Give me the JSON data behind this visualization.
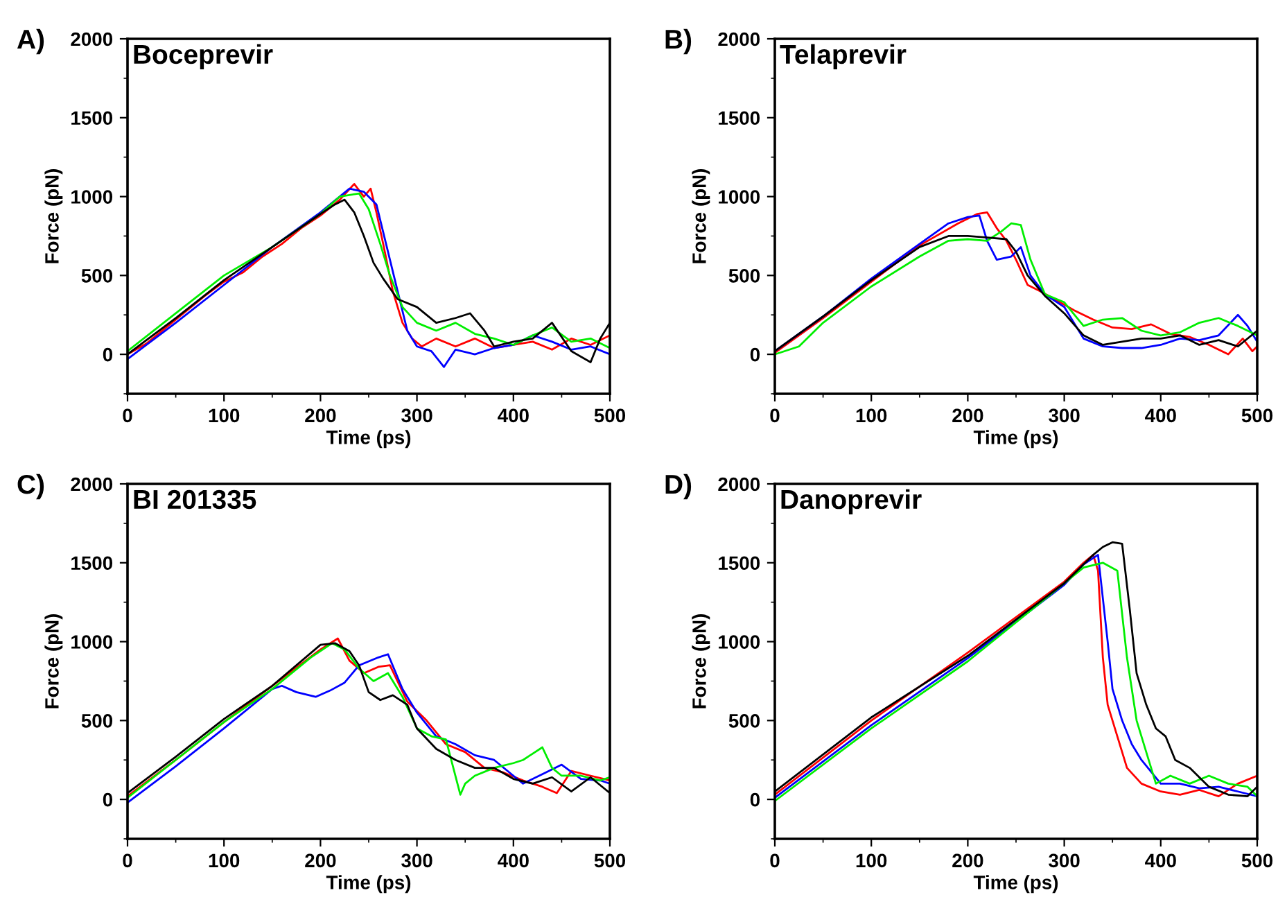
{
  "chart_data": [
    {
      "type": "line",
      "title": "Boceprevir",
      "annotations": [
        "A)"
      ],
      "xlabel": "Time (ps)",
      "ylabel": "Force (pN)",
      "xlim": [
        0,
        500
      ],
      "ylim": [
        -250,
        2000
      ],
      "xticks": [
        0,
        {
          "value": 50,
          "label": null
        },
        100,
        {
          "value": 150,
          "label": null
        },
        200,
        {
          "value": 250,
          "label": null
        },
        300,
        {
          "value": 350,
          "label": null
        },
        400,
        {
          "value": 450,
          "label": null
        },
        500
      ],
      "yticks": [
        {
          "value": -250,
          "label": null
        },
        0,
        {
          "value": 250,
          "label": null
        },
        500,
        {
          "value": 750,
          "label": null
        },
        1000,
        {
          "value": 1250,
          "label": null
        },
        1500,
        {
          "value": 1750,
          "label": null
        },
        2000
      ],
      "grid": false,
      "legend": false,
      "line_style": "solid",
      "marker": "none",
      "series": [
        {
          "color": "#ff0000",
          "x": [
            0,
            20,
            40,
            60,
            80,
            100,
            120,
            140,
            160,
            180,
            200,
            220,
            235,
            245,
            252,
            258,
            265,
            275,
            285,
            295,
            305,
            320,
            340,
            360,
            380,
            400,
            420,
            440,
            460,
            480,
            500
          ],
          "values": [
            0,
            70,
            170,
            270,
            370,
            460,
            520,
            620,
            700,
            800,
            880,
            980,
            1080,
            1000,
            1050,
            900,
            700,
            400,
            200,
            100,
            50,
            100,
            50,
            100,
            40,
            60,
            80,
            30,
            100,
            60,
            120
          ]
        },
        {
          "color": "#0000ff",
          "x": [
            0,
            50,
            100,
            150,
            200,
            230,
            245,
            258,
            268,
            280,
            290,
            300,
            315,
            328,
            340,
            360,
            380,
            400,
            420,
            440,
            460,
            480,
            500
          ],
          "values": [
            -30,
            200,
            440,
            680,
            900,
            1050,
            1030,
            950,
            700,
            400,
            150,
            50,
            20,
            -80,
            30,
            0,
            40,
            60,
            120,
            80,
            30,
            50,
            0
          ]
        },
        {
          "color": "#00ee00",
          "x": [
            0,
            50,
            100,
            150,
            200,
            220,
            240,
            250,
            262,
            272,
            285,
            300,
            320,
            340,
            360,
            380,
            400,
            420,
            440,
            460,
            480,
            500
          ],
          "values": [
            20,
            260,
            500,
            680,
            890,
            1000,
            1020,
            920,
            700,
            500,
            300,
            200,
            150,
            200,
            130,
            100,
            60,
            120,
            170,
            80,
            100,
            40
          ]
        },
        {
          "color": "#000000",
          "x": [
            0,
            50,
            100,
            150,
            200,
            215,
            225,
            235,
            245,
            255,
            265,
            280,
            300,
            320,
            340,
            355,
            370,
            380,
            400,
            420,
            440,
            460,
            480,
            490,
            500
          ],
          "values": [
            0,
            230,
            470,
            680,
            890,
            950,
            980,
            900,
            750,
            580,
            480,
            350,
            300,
            200,
            230,
            260,
            150,
            50,
            80,
            100,
            200,
            20,
            -50,
            100,
            200
          ]
        }
      ]
    },
    {
      "type": "line",
      "title": "Telaprevir",
      "annotations": [
        "B)"
      ],
      "xlabel": "Time (ps)",
      "ylabel": "Force (pN)",
      "xlim": [
        0,
        500
      ],
      "ylim": [
        -250,
        2000
      ],
      "xticks": [
        0,
        {
          "value": 50,
          "label": null
        },
        100,
        {
          "value": 150,
          "label": null
        },
        200,
        {
          "value": 250,
          "label": null
        },
        300,
        {
          "value": 350,
          "label": null
        },
        400,
        {
          "value": 450,
          "label": null
        },
        500
      ],
      "yticks": [
        {
          "value": -250,
          "label": null
        },
        0,
        {
          "value": 250,
          "label": null
        },
        500,
        {
          "value": 750,
          "label": null
        },
        1000,
        {
          "value": 1250,
          "label": null
        },
        1500,
        {
          "value": 1750,
          "label": null
        },
        2000
      ],
      "grid": false,
      "legend": false,
      "line_style": "solid",
      "marker": "none",
      "series": [
        {
          "color": "#ff0000",
          "x": [
            0,
            50,
            100,
            150,
            190,
            210,
            220,
            230,
            240,
            250,
            262,
            275,
            290,
            310,
            330,
            350,
            370,
            390,
            410,
            430,
            450,
            470,
            485,
            495,
            500
          ],
          "values": [
            10,
            230,
            460,
            690,
            830,
            890,
            900,
            800,
            720,
            600,
            440,
            400,
            350,
            280,
            220,
            170,
            160,
            190,
            130,
            110,
            60,
            0,
            100,
            20,
            50
          ]
        },
        {
          "color": "#0000ff",
          "x": [
            0,
            50,
            100,
            150,
            180,
            200,
            212,
            220,
            230,
            245,
            255,
            265,
            280,
            300,
            320,
            340,
            360,
            380,
            400,
            420,
            440,
            460,
            480,
            490,
            500
          ],
          "values": [
            20,
            240,
            480,
            700,
            830,
            870,
            880,
            720,
            600,
            620,
            680,
            500,
            380,
            300,
            100,
            50,
            40,
            40,
            60,
            100,
            90,
            120,
            250,
            180,
            80
          ]
        },
        {
          "color": "#00ee00",
          "x": [
            0,
            25,
            50,
            100,
            150,
            180,
            200,
            220,
            235,
            245,
            255,
            265,
            280,
            300,
            320,
            340,
            360,
            380,
            400,
            420,
            440,
            460,
            480,
            500
          ],
          "values": [
            0,
            50,
            200,
            430,
            620,
            720,
            730,
            720,
            780,
            830,
            820,
            600,
            380,
            330,
            180,
            220,
            230,
            150,
            120,
            140,
            200,
            230,
            180,
            120
          ]
        },
        {
          "color": "#000000",
          "x": [
            0,
            50,
            100,
            150,
            180,
            200,
            220,
            240,
            250,
            262,
            280,
            300,
            320,
            340,
            360,
            380,
            400,
            420,
            440,
            460,
            480,
            500
          ],
          "values": [
            20,
            240,
            470,
            680,
            750,
            750,
            740,
            730,
            650,
            500,
            370,
            260,
            120,
            60,
            80,
            100,
            100,
            120,
            60,
            90,
            50,
            150
          ]
        }
      ]
    },
    {
      "type": "line",
      "title": "BI 201335",
      "annotations": [
        "C)"
      ],
      "xlabel": "Time (ps)",
      "ylabel": "Force (pN)",
      "xlim": [
        0,
        500
      ],
      "ylim": [
        -250,
        2000
      ],
      "xticks": [
        0,
        {
          "value": 50,
          "label": null
        },
        100,
        {
          "value": 150,
          "label": null
        },
        200,
        {
          "value": 250,
          "label": null
        },
        300,
        {
          "value": 350,
          "label": null
        },
        400,
        {
          "value": 450,
          "label": null
        },
        500
      ],
      "yticks": [
        {
          "value": -250,
          "label": null
        },
        0,
        {
          "value": 250,
          "label": null
        },
        500,
        {
          "value": 750,
          "label": null
        },
        1000,
        {
          "value": 1250,
          "label": null
        },
        1500,
        {
          "value": 1750,
          "label": null
        },
        2000
      ],
      "grid": false,
      "legend": false,
      "line_style": "solid",
      "marker": "none",
      "series": [
        {
          "color": "#ff0000",
          "x": [
            0,
            50,
            100,
            150,
            200,
            218,
            230,
            245,
            260,
            272,
            290,
            310,
            330,
            350,
            370,
            390,
            410,
            430,
            445,
            460,
            480,
            500
          ],
          "values": [
            20,
            250,
            490,
            720,
            950,
            1020,
            880,
            800,
            840,
            850,
            620,
            500,
            350,
            300,
            200,
            170,
            120,
            80,
            40,
            180,
            150,
            120
          ]
        },
        {
          "color": "#0000ff",
          "x": [
            0,
            50,
            100,
            150,
            160,
            175,
            195,
            210,
            225,
            240,
            260,
            270,
            285,
            300,
            320,
            340,
            360,
            380,
            400,
            410,
            430,
            450,
            470,
            490,
            500
          ],
          "values": [
            -20,
            210,
            450,
            700,
            720,
            680,
            650,
            690,
            740,
            850,
            900,
            920,
            700,
            550,
            400,
            350,
            280,
            250,
            150,
            100,
            160,
            220,
            130,
            120,
            100
          ]
        },
        {
          "color": "#00ee00",
          "x": [
            0,
            50,
            100,
            150,
            190,
            212,
            225,
            240,
            255,
            270,
            285,
            300,
            315,
            330,
            345,
            350,
            360,
            380,
            400,
            410,
            420,
            430,
            440,
            450,
            470,
            490,
            500
          ],
          "values": [
            10,
            250,
            490,
            700,
            900,
            990,
            950,
            830,
            750,
            800,
            650,
            450,
            400,
            380,
            30,
            100,
            150,
            200,
            230,
            250,
            290,
            330,
            200,
            150,
            150,
            120,
            140
          ]
        },
        {
          "color": "#000000",
          "x": [
            0,
            50,
            100,
            150,
            200,
            215,
            230,
            240,
            250,
            262,
            275,
            290,
            300,
            320,
            340,
            360,
            380,
            400,
            420,
            440,
            460,
            480,
            500
          ],
          "values": [
            40,
            270,
            510,
            720,
            980,
            990,
            940,
            850,
            680,
            630,
            660,
            600,
            450,
            320,
            250,
            200,
            200,
            130,
            100,
            140,
            50,
            140,
            40
          ]
        }
      ]
    },
    {
      "type": "line",
      "title": "Danoprevir",
      "annotations": [
        "D)"
      ],
      "xlabel": "Time (ps)",
      "ylabel": "Force (pN)",
      "xlim": [
        0,
        500
      ],
      "ylim": [
        -250,
        2000
      ],
      "xticks": [
        0,
        {
          "value": 50,
          "label": null
        },
        100,
        {
          "value": 150,
          "label": null
        },
        200,
        {
          "value": 250,
          "label": null
        },
        300,
        {
          "value": 350,
          "label": null
        },
        400,
        {
          "value": 450,
          "label": null
        },
        500
      ],
      "yticks": [
        {
          "value": -250,
          "label": null
        },
        0,
        {
          "value": 250,
          "label": null
        },
        500,
        {
          "value": 750,
          "label": null
        },
        1000,
        {
          "value": 1250,
          "label": null
        },
        1500,
        {
          "value": 1750,
          "label": null
        },
        2000
      ],
      "grid": false,
      "legend": false,
      "line_style": "solid",
      "marker": "none",
      "series": [
        {
          "color": "#ff0000",
          "x": [
            0,
            100,
            200,
            300,
            320,
            330,
            335,
            340,
            345,
            355,
            365,
            380,
            400,
            420,
            440,
            460,
            480,
            500
          ],
          "values": [
            30,
            500,
            930,
            1380,
            1500,
            1550,
            1450,
            900,
            600,
            400,
            200,
            100,
            50,
            30,
            60,
            20,
            100,
            150
          ]
        },
        {
          "color": "#0000ff",
          "x": [
            0,
            100,
            200,
            300,
            320,
            335,
            345,
            350,
            360,
            370,
            380,
            400,
            420,
            440,
            460,
            480,
            500
          ],
          "values": [
            10,
            470,
            895,
            1360,
            1490,
            1550,
            1000,
            700,
            500,
            350,
            250,
            100,
            100,
            70,
            80,
            50,
            20
          ]
        },
        {
          "color": "#00ee00",
          "x": [
            0,
            100,
            200,
            300,
            310,
            320,
            340,
            355,
            365,
            375,
            385,
            395,
            410,
            430,
            450,
            470,
            490,
            500
          ],
          "values": [
            -10,
            450,
            875,
            1370,
            1420,
            1470,
            1500,
            1450,
            900,
            500,
            300,
            100,
            150,
            100,
            150,
            100,
            80,
            20
          ]
        },
        {
          "color": "#000000",
          "x": [
            0,
            100,
            200,
            300,
            310,
            330,
            340,
            350,
            360,
            368,
            375,
            385,
            395,
            405,
            415,
            430,
            450,
            470,
            490,
            500
          ],
          "values": [
            50,
            520,
            910,
            1370,
            1430,
            1550,
            1600,
            1630,
            1620,
            1200,
            800,
            600,
            450,
            400,
            250,
            200,
            80,
            30,
            20,
            80
          ]
        }
      ]
    }
  ]
}
